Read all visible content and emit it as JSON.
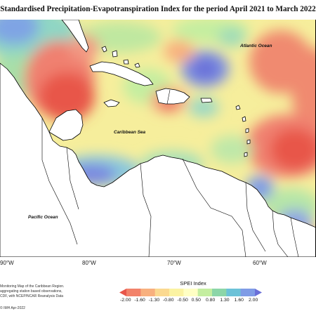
{
  "title": "Standardised Precipitation-Evapotranspiration Index for the period April 2021 to March 2022",
  "labels": {
    "atlantic": "Atlantic Ocean",
    "caribbean": "Caribbean Sea",
    "pacific": "Pacific Ocean"
  },
  "longitudes": [
    "90°W",
    "80°W",
    "70°W",
    "60°W"
  ],
  "credit": {
    "line1": "Monitoring Map of the Caribbean Region.",
    "line2": "aggregating station based observations,",
    "line3": "CDF, with NCEP/NCAR Reanalysis Data",
    "line4": "© IMH Apr-2022"
  },
  "legend": {
    "title": "SPEI Index",
    "ticks": [
      "-2.00",
      "-1.60",
      "-1.30",
      "-0.80",
      "-0.50",
      "0.50",
      "0.80",
      "1.30",
      "1.60",
      "2.00"
    ],
    "colors": [
      "#e8564a",
      "#f2826a",
      "#f8b07e",
      "#fbd990",
      "#fbf3a2",
      "#ffffc4",
      "#c4eea0",
      "#8cd6a8",
      "#6cc2d8",
      "#7f9ce6",
      "#6a6fd8"
    ]
  }
}
